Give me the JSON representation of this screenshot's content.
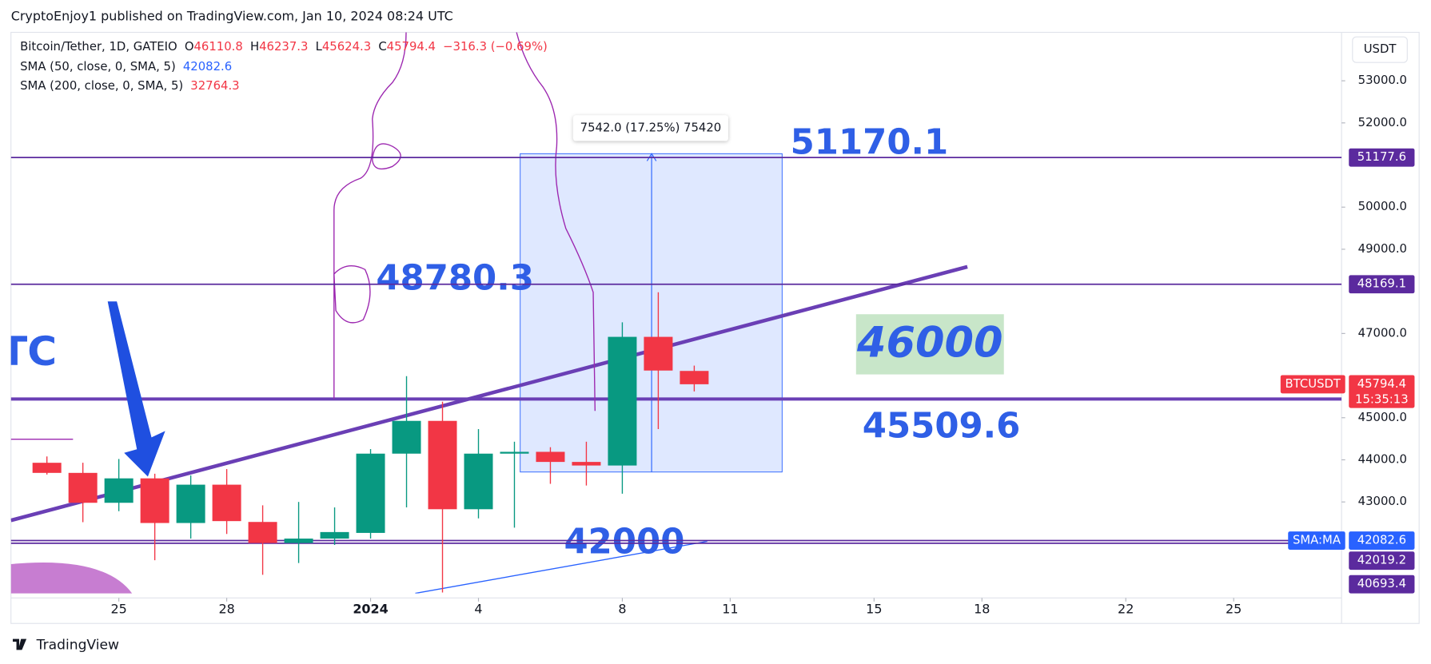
{
  "header": "CryptoEnjoy1 published on TradingView.com, Jan 10, 2024 08:24 UTC",
  "footer": "TradingView",
  "chart_data": {
    "type": "candlestick",
    "symbol": "Bitcoin/Tether, 1D, GATEIO",
    "ohlc_letters": [
      "O",
      "H",
      "L",
      "C"
    ],
    "change": "−316.3 (−0.69%)",
    "indicators": [
      {
        "name": "SMA (50, close, 0, SMA, 5)",
        "value": 42082.6,
        "color": "#2962ff"
      },
      {
        "name": "SMA (200, close, 0, SMA, 5)",
        "value": 32764.3,
        "color": "#f23645"
      }
    ],
    "currency": "USDT",
    "x": [
      "2023-12-23",
      "2023-12-24",
      "2023-12-25",
      "2023-12-26",
      "2023-12-27",
      "2023-12-28",
      "2023-12-29",
      "2023-12-30",
      "2023-12-31",
      "2024-01-01",
      "2024-01-02",
      "2024-01-03",
      "2024-01-04",
      "2024-01-05",
      "2024-01-06",
      "2024-01-07",
      "2024-01-08",
      "2024-01-09",
      "2024-01-10"
    ],
    "open": [
      43930,
      43690,
      42980,
      43560,
      42500,
      43410,
      42525,
      42025,
      42130,
      42265,
      44147,
      44925,
      42827,
      44147,
      44190,
      43950,
      43865,
      46920,
      46110.8
    ],
    "high": [
      44080,
      43930,
      44020,
      43670,
      43630,
      43780,
      42920,
      43000,
      42870,
      44255,
      45987,
      45380,
      44730,
      44430,
      44300,
      44430,
      47265,
      47980,
      46237.3
    ],
    "low": [
      43650,
      42520,
      42780,
      41615,
      42130,
      42240,
      41270,
      41550,
      41980,
      42130,
      42870,
      40850,
      42610,
      42390,
      43430,
      43390,
      43195,
      44730,
      45624.3
    ],
    "close": [
      43690,
      42980,
      43560,
      42500,
      43410,
      42545,
      42025,
      42130,
      42285,
      44147,
      44925,
      42827,
      44147,
      44190,
      43950,
      43865,
      46920,
      46120,
      45794.4
    ],
    "up_color": "#089981",
    "down_color": "#f23645",
    "xlim": [
      "2023-12-22",
      "2024-01-28"
    ],
    "xticks": [
      {
        "value": "2023-12-25",
        "label": "25"
      },
      {
        "value": "2023-12-28",
        "label": "28"
      },
      {
        "value": "2024-01-01",
        "label": "2024"
      },
      {
        "value": "2024-01-04",
        "label": "4"
      },
      {
        "value": "2024-01-08",
        "label": "8"
      },
      {
        "value": "2024-01-11",
        "label": "11"
      },
      {
        "value": "2024-01-15",
        "label": "15"
      },
      {
        "value": "2024-01-18",
        "label": "18"
      },
      {
        "value": "2024-01-22",
        "label": "22"
      },
      {
        "value": "2024-01-25",
        "label": "25"
      }
    ],
    "ylim": [
      40830,
      54150
    ],
    "yticks": [
      {
        "value": 43000,
        "label": "43000.0"
      },
      {
        "value": 44000,
        "label": "44000.0"
      },
      {
        "value": 45000,
        "label": "45000.0"
      },
      {
        "value": 47000,
        "label": "47000.0"
      },
      {
        "value": 49000,
        "label": "49000.0"
      },
      {
        "value": 50000,
        "label": "50000.0"
      },
      {
        "value": 52000,
        "label": "52000.0"
      },
      {
        "value": 53000,
        "label": "53000.0"
      }
    ],
    "price_lines": [
      {
        "value": 51177.6,
        "color": "#5b2a9e"
      },
      {
        "value": 48169.1,
        "color": "#5b2a9e"
      },
      {
        "value": 42019.2,
        "color": "#5b2a9e"
      },
      {
        "value": 40693.4,
        "color": "#5b2a9e"
      }
    ],
    "last_price_name": "BTCUSDT",
    "countdown": "15:35:13",
    "sma_label": "SMA:MA",
    "annotations": [
      "51170.1",
      "48780.3",
      "46000",
      "45509.6",
      "42000",
      "TC",
      "7542.0 (17.25%) 75420"
    ]
  }
}
